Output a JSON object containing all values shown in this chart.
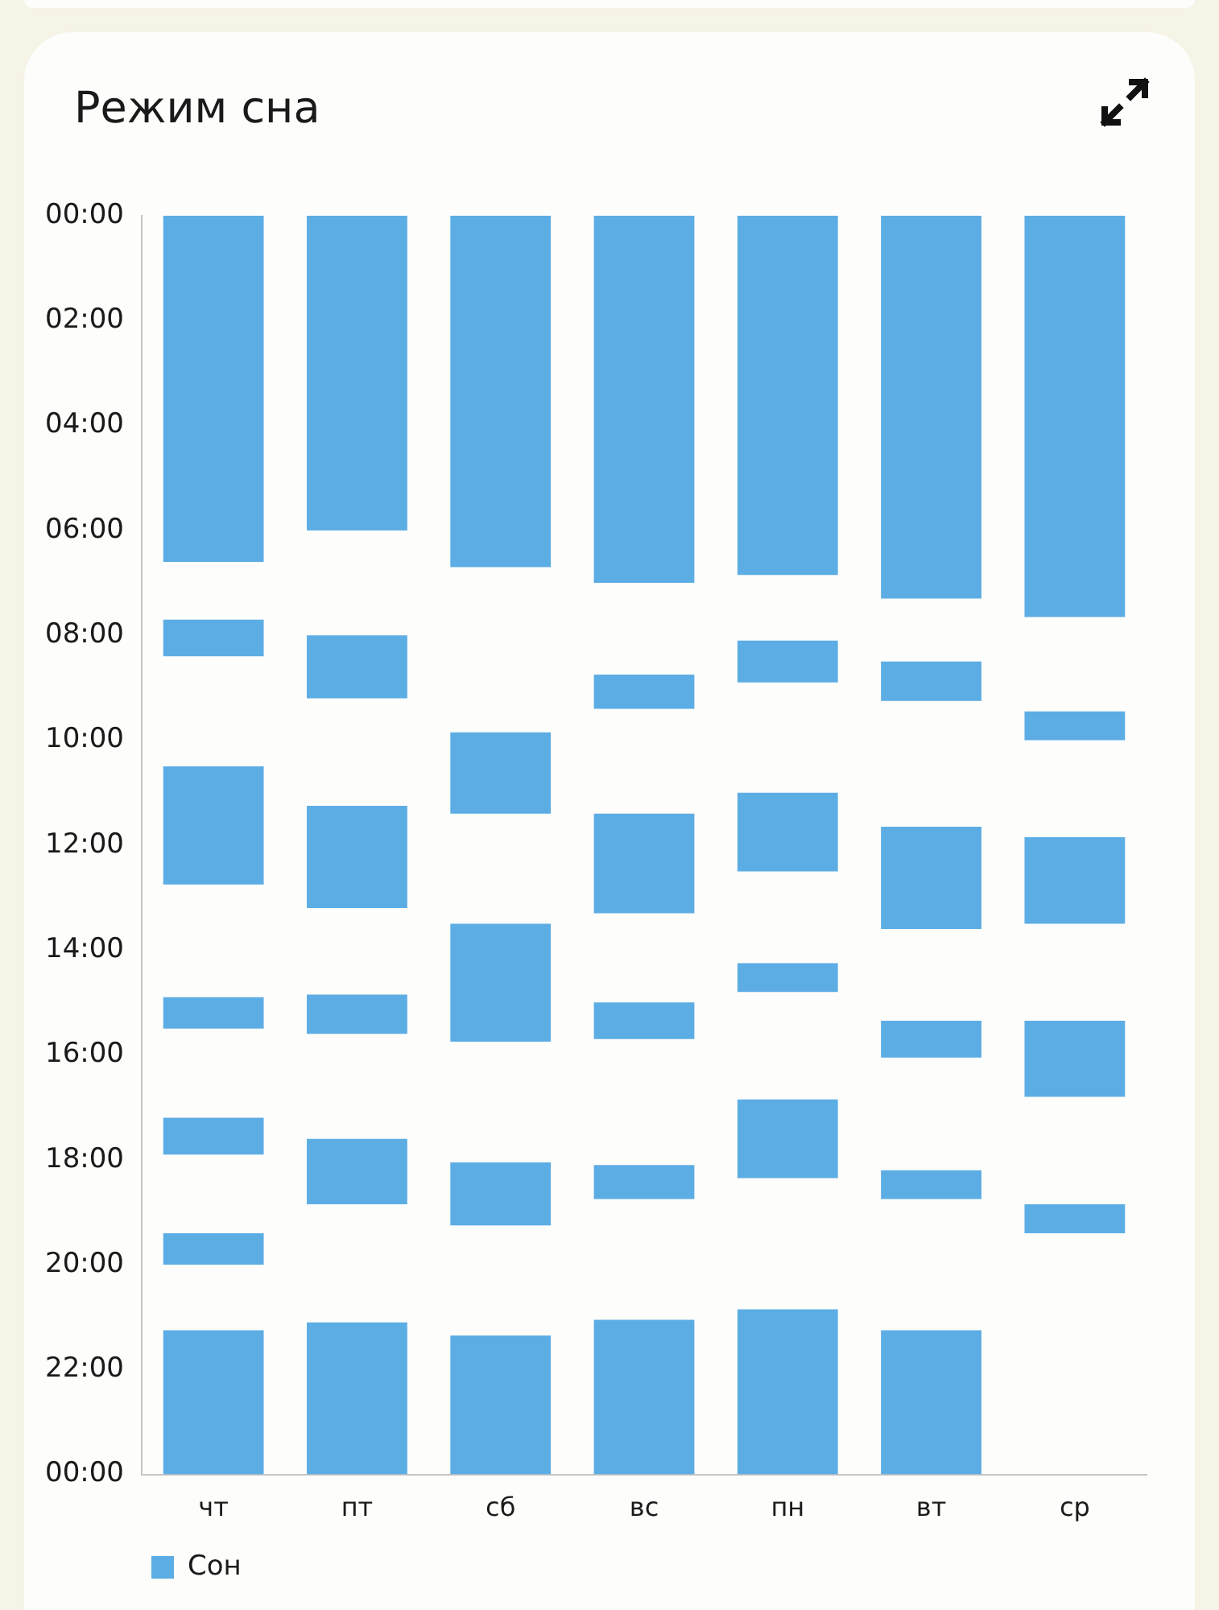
{
  "chart_data": {
    "type": "bar",
    "title": "Режим сна",
    "categories": [
      "чт",
      "пт",
      "сб",
      "вс",
      "пн",
      "вт",
      "ср"
    ],
    "series": [
      {
        "name": "Сон",
        "color": "#5dade5",
        "base": [
          0,
          0,
          0,
          0,
          0,
          0,
          0
        ],
        "values": [
          6.6,
          6.0,
          6.7,
          7.0,
          6.85,
          7.3,
          7.65
        ]
      },
      {
        "color": "#5dade5",
        "base": [
          7.7,
          8.0,
          9.85,
          8.75,
          8.1,
          8.5,
          9.45
        ],
        "values": [
          0.7,
          1.2,
          1.55,
          0.65,
          0.8,
          0.75,
          0.55
        ]
      },
      {
        "color": "#5dade5",
        "base": [
          10.5,
          11.25,
          13.5,
          11.4,
          11.0,
          11.65,
          11.85
        ],
        "values": [
          2.25,
          1.95,
          2.25,
          1.9,
          1.5,
          1.95,
          1.65
        ]
      },
      {
        "color": "#5dade5",
        "base": [
          14.9,
          14.85,
          18.05,
          15.0,
          14.25,
          15.35,
          15.35
        ],
        "values": [
          0.6,
          0.75,
          1.2,
          0.7,
          0.55,
          0.7,
          1.45
        ]
      },
      {
        "color": "#5dade5",
        "base": [
          17.2,
          17.6,
          21.35,
          18.1,
          16.85,
          18.2,
          18.85
        ],
        "values": [
          0.7,
          1.25,
          2.65,
          0.65,
          1.5,
          0.55,
          0.55
        ]
      },
      {
        "color": "#5dade5",
        "base": [
          19.4,
          21.1,
          null,
          21.05,
          20.85,
          21.25,
          null
        ],
        "values": [
          0.6,
          2.9,
          null,
          2.95,
          3.15,
          2.75,
          null
        ]
      },
      {
        "color": "#5dade5",
        "base": [
          21.25,
          null,
          null,
          null,
          null,
          null,
          null
        ],
        "values": [
          2.75,
          null,
          null,
          null,
          null,
          null,
          null
        ]
      }
    ],
    "ylim": [
      24,
      0
    ],
    "yticks": [
      {
        "value": 0,
        "label": "00:00"
      },
      {
        "value": 2,
        "label": "02:00"
      },
      {
        "value": 4,
        "label": "04:00"
      },
      {
        "value": 6,
        "label": "06:00"
      },
      {
        "value": 8,
        "label": "08:00"
      },
      {
        "value": 10,
        "label": "10:00"
      },
      {
        "value": 12,
        "label": "12:00"
      },
      {
        "value": 14,
        "label": "14:00"
      },
      {
        "value": 16,
        "label": "16:00"
      },
      {
        "value": 18,
        "label": "18:00"
      },
      {
        "value": 20,
        "label": "20:00"
      },
      {
        "value": 22,
        "label": "22:00"
      },
      {
        "value": 24,
        "label": "00:00"
      }
    ],
    "legend": "bottom left"
  }
}
